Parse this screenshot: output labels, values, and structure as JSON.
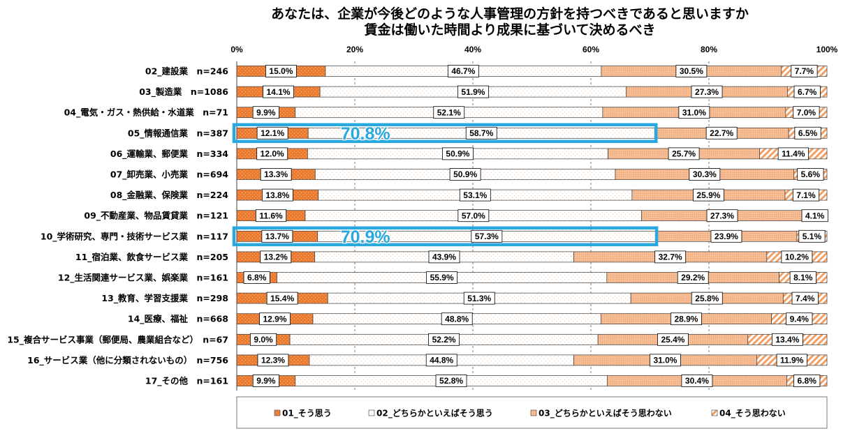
{
  "chart_data": {
    "type": "bar",
    "orientation": "horizontal",
    "stacked": true,
    "normalized": true,
    "title": "あなたは、企業が今後どのような人事管理の方針を持つべきであると思いますか",
    "subtitle": "賃金は働いた時間より成果に基づいて決めるべき",
    "xlim": [
      0,
      100
    ],
    "x_ticks": [
      0,
      20,
      40,
      60,
      80,
      100
    ],
    "x_tick_labels": [
      "0%",
      "20%",
      "40%",
      "60%",
      "80%",
      "100%"
    ],
    "xaxis_position": "top",
    "grid": true,
    "legend": "bottom",
    "categories": [
      "02_建設業　n=246",
      "03_製造業　n=1086",
      "04_電気・ガス・熱供給・水道業　n=71",
      "05_情報通信業　n=387",
      "06_運輸業、郵便業　n=334",
      "07_卸売業、小売業　n=694",
      "08_金融業、保険業　n=224",
      "09_不動産業、物品賃貸業　n=121",
      "10_学術研究、専門・技術サービス業　n=117",
      "11_宿泊業、飲食サービス業　n=205",
      "12_生活関連サービス業、娯楽業　n=161",
      "13_教育、学習支援業　n=298",
      "14_医療、福祉　n=668",
      "15_複合サービス事業（郵便局、農業組合など）　n=67",
      "16_サービス業（他に分類されないもの）　n=756",
      "17_その他　n=161"
    ],
    "series": [
      {
        "name": "01_そう思う",
        "color": "#EC7A2E",
        "values": [
          15.0,
          14.1,
          9.9,
          12.1,
          12.0,
          13.3,
          13.8,
          11.6,
          13.7,
          13.2,
          6.8,
          15.4,
          12.9,
          9.0,
          12.3,
          9.9
        ],
        "labels": [
          "15.0%",
          "14.1%",
          "9.9%",
          "12.1%",
          "12.0%",
          "13.3%",
          "13.8%",
          "11.6%",
          "13.7%",
          "13.2%",
          "6.8%",
          "15.4%",
          "12.9%",
          "9.0%",
          "12.3%",
          "9.9%"
        ]
      },
      {
        "name": "02_どちらかといえばそう思う",
        "color": "#FFFFFF",
        "values": [
          46.7,
          51.9,
          52.1,
          58.7,
          50.9,
          50.9,
          53.1,
          57.0,
          57.3,
          43.9,
          55.9,
          51.3,
          48.8,
          52.2,
          44.8,
          52.8
        ],
        "labels": [
          "46.7%",
          "51.9%",
          "52.1%",
          "58.7%",
          "50.9%",
          "50.9%",
          "53.1%",
          "57.0%",
          "57.3%",
          "43.9%",
          "55.9%",
          "51.3%",
          "48.8%",
          "52.2%",
          "44.8%",
          "52.8%"
        ]
      },
      {
        "name": "03_どちらかといえばそう思わない",
        "color": "#F6BE96",
        "values": [
          30.5,
          27.3,
          31.0,
          22.7,
          25.7,
          30.3,
          25.9,
          27.3,
          23.9,
          32.7,
          29.2,
          25.8,
          28.9,
          25.4,
          31.0,
          30.4
        ],
        "labels": [
          "30.5%",
          "27.3%",
          "31.0%",
          "22.7%",
          "25.7%",
          "30.3%",
          "25.9%",
          "27.3%",
          "23.9%",
          "32.7%",
          "29.2%",
          "25.8%",
          "28.9%",
          "25.4%",
          "31.0%",
          "30.4%"
        ]
      },
      {
        "name": "04_そう思わない",
        "color": "#F2A064",
        "values": [
          7.7,
          6.7,
          7.0,
          6.5,
          11.4,
          5.6,
          7.1,
          4.1,
          5.1,
          10.2,
          8.1,
          7.4,
          9.4,
          13.4,
          11.9,
          6.8
        ],
        "labels": [
          "7.7%",
          "6.7%",
          "7.0%",
          "6.5%",
          "11.4%",
          "5.6%",
          "7.1%",
          "4.1%",
          "5.1%",
          "10.2%",
          "8.1%",
          "7.4%",
          "9.4%",
          "13.4%",
          "11.9%",
          "6.8%"
        ]
      }
    ],
    "annotations": [
      {
        "category_index": 3,
        "value": 70.8,
        "label": "70.8%",
        "color": "#29A8E0"
      },
      {
        "category_index": 8,
        "value": 70.9,
        "label": "70.9%",
        "color": "#29A8E0"
      }
    ]
  }
}
